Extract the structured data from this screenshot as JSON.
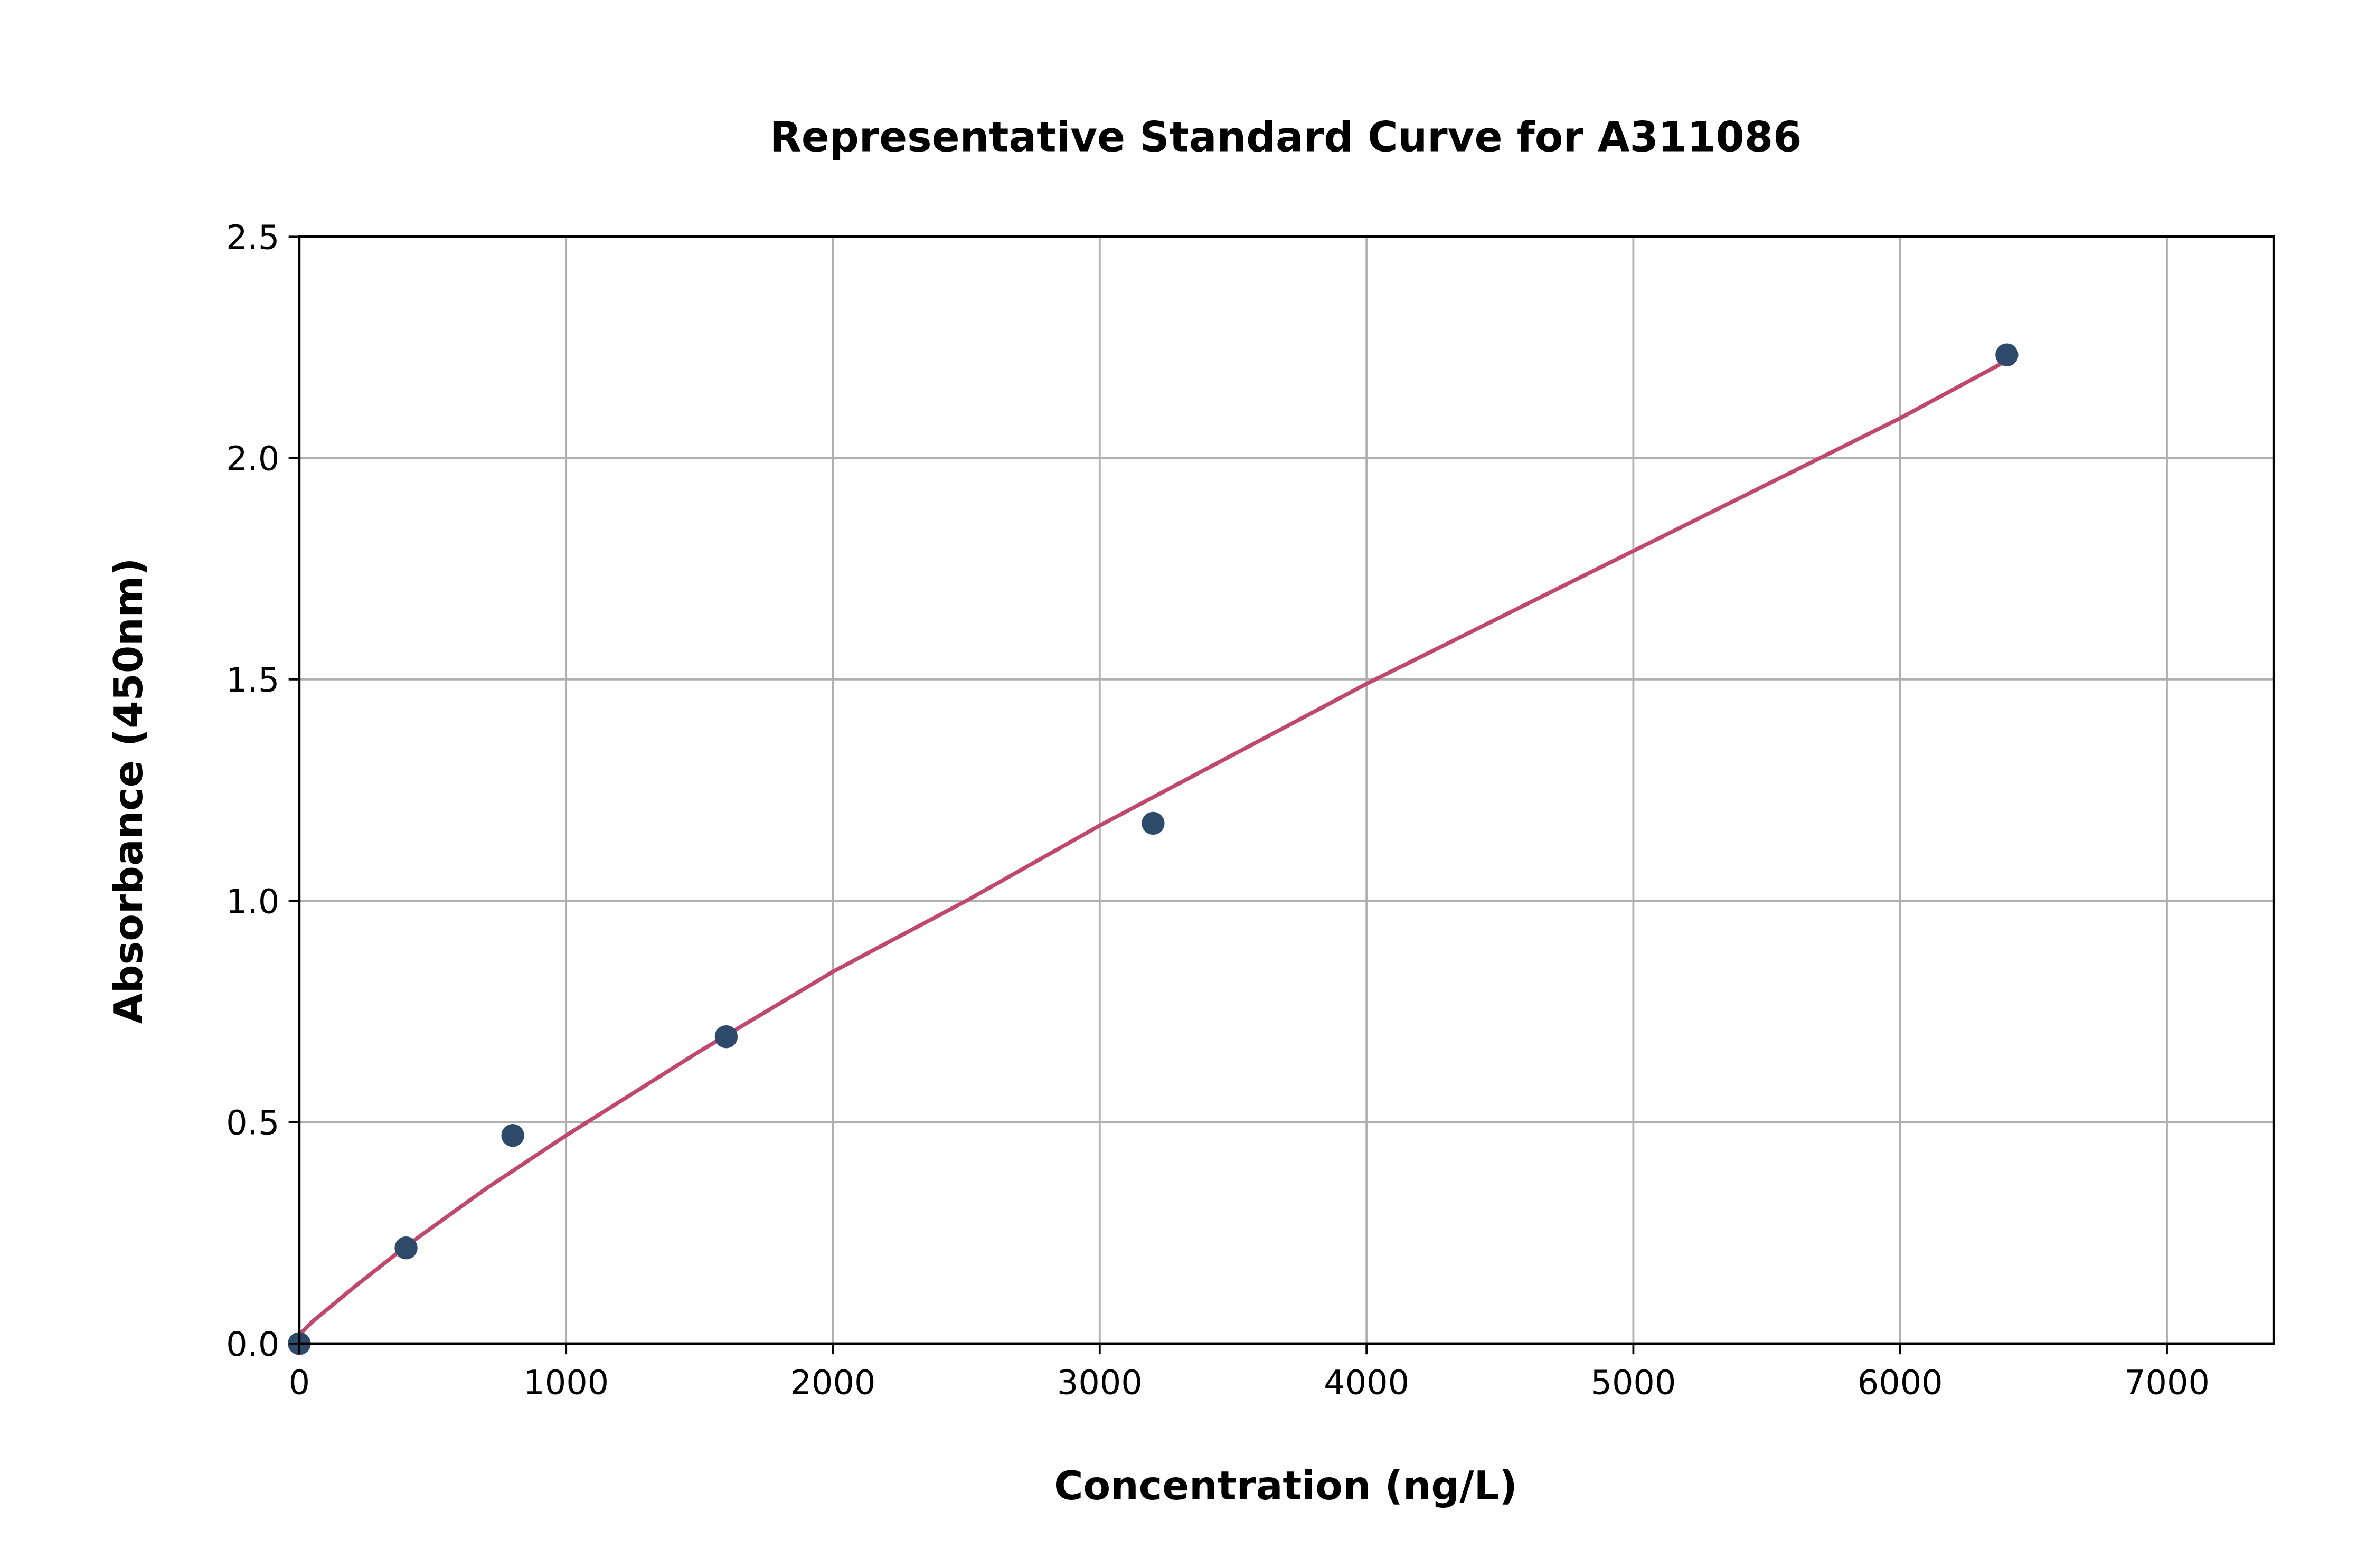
{
  "chart_data": {
    "type": "scatter",
    "title": "Representative Standard Curve for A311086",
    "xlabel": "Concentration (ng/L)",
    "ylabel": "Absorbance (450nm)",
    "xlim": [
      0,
      7400
    ],
    "ylim": [
      0,
      2.5
    ],
    "xticks": [
      0,
      1000,
      2000,
      3000,
      4000,
      5000,
      6000,
      7000
    ],
    "xtick_labels": [
      "0",
      "1000",
      "2000",
      "3000",
      "4000",
      "5000",
      "6000",
      "7000"
    ],
    "yticks": [
      0,
      0.5,
      1.0,
      1.5,
      2.0,
      2.5
    ],
    "ytick_labels": [
      "0.0",
      "0.5",
      "1.0",
      "1.5",
      "2.0",
      "2.5"
    ],
    "grid": true,
    "points": {
      "x": [
        0,
        400,
        800,
        1600,
        3200,
        6400
      ],
      "y": [
        0.0,
        0.216,
        0.47,
        0.693,
        1.175,
        2.233
      ],
      "color": "#2e4a6b"
    },
    "fit_curve": {
      "x": [
        0,
        50,
        100,
        200,
        400,
        700,
        1000,
        1500,
        2000,
        2500,
        3000,
        3500,
        4000,
        4500,
        5000,
        5500,
        6000,
        6400
      ],
      "y": [
        0.02,
        0.05,
        0.075,
        0.125,
        0.22,
        0.35,
        0.47,
        0.66,
        0.84,
        1.0,
        1.17,
        1.33,
        1.49,
        1.64,
        1.79,
        1.94,
        2.09,
        2.22
      ],
      "color": "#c0486e"
    }
  }
}
